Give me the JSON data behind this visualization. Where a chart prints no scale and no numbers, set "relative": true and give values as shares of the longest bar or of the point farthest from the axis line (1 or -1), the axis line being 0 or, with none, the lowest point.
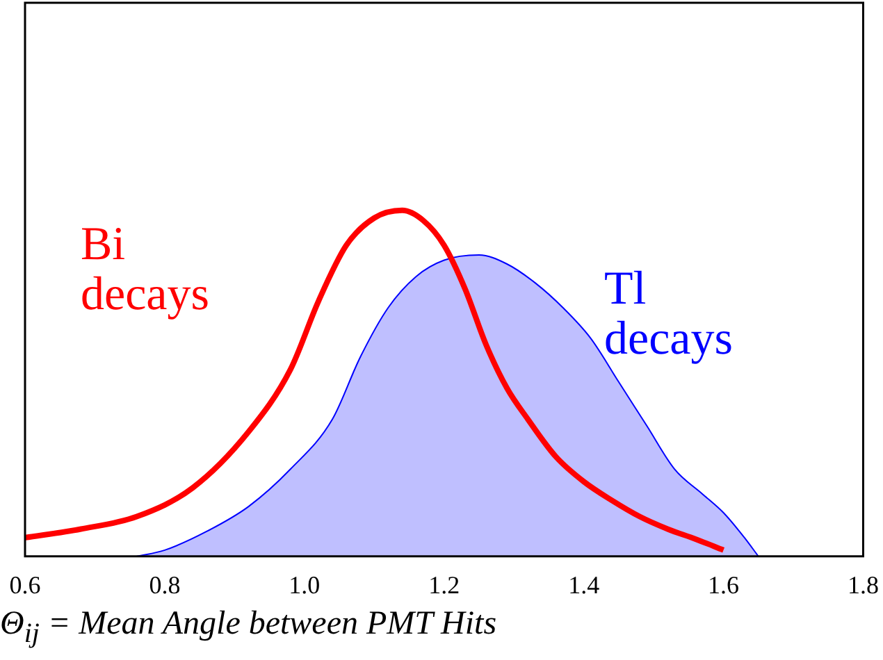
{
  "chart_data": {
    "type": "line",
    "xlabel": "Θ$_{ij}$ = Mean Angle between PMT Hits",
    "relative": true,
    "xlim": [
      0.6,
      1.8
    ],
    "xticks": [
      0.6,
      0.8,
      {
        "value": 1,
        "label": "1.0"
      },
      1.2,
      1.4,
      1.6,
      1.8
    ],
    "grid": false,
    "legend": false,
    "marker": "none",
    "series": [
      {
        "name": "Bi decays",
        "type": "line",
        "color": "#ff0000",
        "x": [
          0.6,
          0.68,
          0.76,
          0.84,
          0.92,
          0.98,
          1.02,
          1.06,
          1.1,
          1.14,
          1.17,
          1.2,
          1.23,
          1.26,
          1.29,
          1.32,
          1.36,
          1.4,
          1.44,
          1.48,
          1.52,
          1.56,
          1.6
        ],
        "values": [
          0.054,
          0.079,
          0.115,
          0.198,
          0.36,
          0.54,
          0.737,
          0.899,
          0.978,
          1,
          0.971,
          0.899,
          0.773,
          0.612,
          0.486,
          0.396,
          0.288,
          0.216,
          0.162,
          0.115,
          0.079,
          0.05,
          0.018
        ]
      },
      {
        "name": "Tl decays",
        "type": "area",
        "color": "#0000ff",
        "x": [
          0.76,
          0.8,
          0.86,
          0.92,
          0.98,
          1.04,
          1.08,
          1.12,
          1.16,
          1.2,
          1.25,
          1.29,
          1.33,
          1.37,
          1.41,
          1.45,
          1.49,
          1.53,
          1.57,
          1.6,
          1.63,
          1.65
        ],
        "values": [
          0,
          0.018,
          0.072,
          0.144,
          0.252,
          0.396,
          0.576,
          0.719,
          0.809,
          0.856,
          0.871,
          0.845,
          0.791,
          0.719,
          0.63,
          0.504,
          0.378,
          0.252,
          0.18,
          0.126,
          0.054,
          0
        ]
      }
    ]
  }
}
